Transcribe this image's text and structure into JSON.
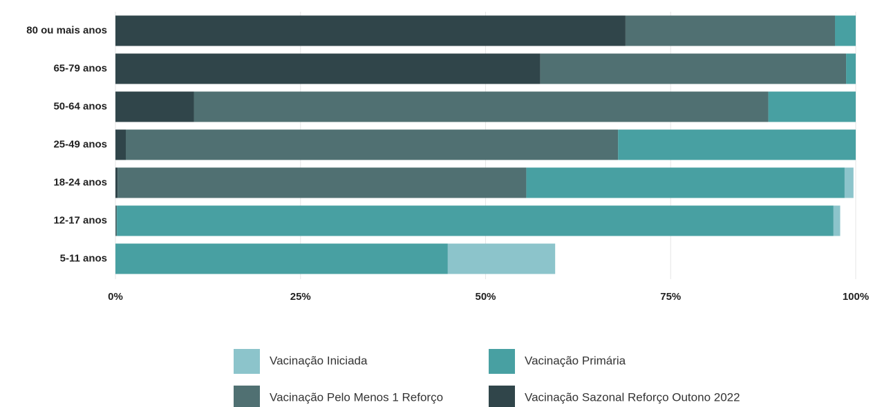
{
  "chart_data": {
    "type": "stacked-barh",
    "categories": [
      "80 ou mais anos",
      "65-79 anos",
      "50-64 anos",
      "25-49 anos",
      "18-24 anos",
      "12-17 anos",
      "5-11 anos"
    ],
    "series": [
      {
        "name": "Vacinação Iniciada",
        "color": "#8cc4cb",
        "values": [
          0,
          0,
          0,
          0,
          1.2,
          0.9,
          14.5
        ]
      },
      {
        "name": "Vacinação Primária",
        "color": "#48a0a2",
        "values": [
          2.8,
          1.3,
          11.8,
          32.1,
          43.0,
          96.8,
          44.9
        ]
      },
      {
        "name": "Vacinação Pelo Menos 1 Reforço",
        "color": "#507072",
        "values": [
          28.3,
          41.3,
          77.6,
          66.5,
          55.2,
          0.2,
          0
        ]
      },
      {
        "name": "Vacinação Sazonal Reforço Outono 2022",
        "color": "#30454a",
        "values": [
          68.9,
          57.4,
          10.6,
          1.4,
          0.3,
          0,
          0
        ]
      }
    ],
    "xlim": [
      0,
      100
    ],
    "xticks": [
      {
        "value": 0,
        "label": "0%"
      },
      {
        "value": 25,
        "label": "25%"
      },
      {
        "value": 50,
        "label": "50%"
      },
      {
        "value": 75,
        "label": "75%"
      },
      {
        "value": 100,
        "label": "100%"
      }
    ],
    "grid": true
  }
}
